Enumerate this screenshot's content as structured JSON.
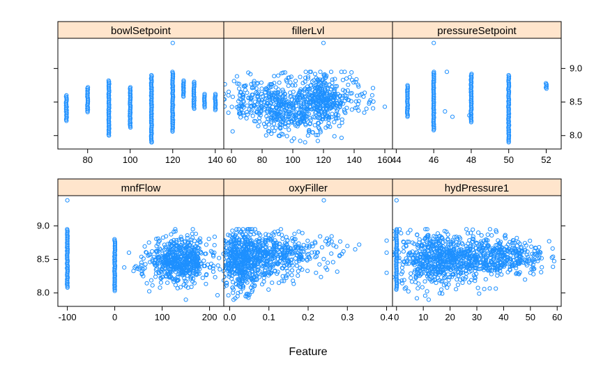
{
  "chart_data": {
    "type": "scatter",
    "layout": "lattice 3x2 panels",
    "xlabel": "Feature",
    "ylabel": "",
    "ylim": [
      7.8,
      9.45
    ],
    "yticks": [
      8.0,
      8.5,
      9.0
    ],
    "point_color": "#1e90ff",
    "strip_color": "#ffe5cc",
    "panels": [
      {
        "name": "bowlSetpoint",
        "row": 0,
        "col": 0,
        "xlim": [
          66,
          144
        ],
        "xticks": [
          80,
          100,
          120,
          140
        ],
        "columns": [
          {
            "x": 70,
            "ymin": 8.22,
            "ymax": 8.6
          },
          {
            "x": 80,
            "ymin": 8.35,
            "ymax": 8.72
          },
          {
            "x": 90,
            "ymin": 8.0,
            "ymax": 8.82
          },
          {
            "x": 100,
            "ymin": 8.12,
            "ymax": 8.72
          },
          {
            "x": 110,
            "ymin": 7.9,
            "ymax": 8.9
          },
          {
            "x": 120,
            "ymin": 8.06,
            "ymax": 8.95
          },
          {
            "x": 125,
            "ymin": 8.58,
            "ymax": 8.82
          },
          {
            "x": 130,
            "ymin": 8.4,
            "ymax": 8.8
          },
          {
            "x": 135,
            "ymin": 8.42,
            "ymax": 8.6
          },
          {
            "x": 140,
            "ymin": 8.38,
            "ymax": 8.62
          }
        ],
        "outliers": [
          [
            120,
            9.38
          ],
          [
            110,
            7.9
          ],
          [
            135,
            8.62
          ]
        ]
      },
      {
        "name": "fillerLvl",
        "row": 0,
        "col": 1,
        "xlim": [
          55,
          165
        ],
        "xticks": [
          60,
          80,
          100,
          120,
          140,
          160
        ],
        "clusters": [
          {
            "cx": 72,
            "cy": 8.5,
            "sx": 8,
            "sy": 0.17,
            "n": 130
          },
          {
            "cx": 90,
            "cy": 8.45,
            "sx": 5,
            "sy": 0.22,
            "n": 190
          },
          {
            "cx": 105,
            "cy": 8.42,
            "sx": 6,
            "sy": 0.22,
            "n": 160
          },
          {
            "cx": 120,
            "cy": 8.52,
            "sx": 6,
            "sy": 0.2,
            "n": 290
          },
          {
            "cx": 135,
            "cy": 8.55,
            "sx": 8,
            "sy": 0.15,
            "n": 60
          }
        ],
        "outliers": [
          [
            120,
            9.38
          ],
          [
            160,
            8.43
          ],
          [
            150,
            8.5
          ],
          [
            145,
            8.62
          ],
          [
            148,
            8.4
          ],
          [
            142,
            8.42
          ],
          [
            108,
            7.9
          ],
          [
            58,
            8.6
          ],
          [
            65,
            8.7
          ],
          [
            110,
            8.88
          ],
          [
            125,
            8.95
          ],
          [
            135,
            8.85
          ]
        ]
      },
      {
        "name": "pressureSetpoint",
        "row": 0,
        "col": 2,
        "xlim": [
          43.8,
          52.8
        ],
        "xticks": [
          44,
          46,
          48,
          50,
          52
        ],
        "columns": [
          {
            "x": 44.6,
            "ymin": 8.28,
            "ymax": 8.75
          },
          {
            "x": 46,
            "ymin": 8.08,
            "ymax": 8.95
          },
          {
            "x": 48,
            "ymin": 8.2,
            "ymax": 8.92
          },
          {
            "x": 50,
            "ymin": 7.9,
            "ymax": 8.9
          },
          {
            "x": 52,
            "ymin": 8.7,
            "ymax": 8.78
          }
        ],
        "outliers": [
          [
            46,
            9.38
          ],
          [
            46.6,
            8.36
          ],
          [
            47,
            8.28
          ],
          [
            46.7,
            8.95
          ],
          [
            47.9,
            8.3
          ]
        ]
      },
      {
        "name": "mnfFlow",
        "row": 1,
        "col": 0,
        "xlim": [
          -120,
          230
        ],
        "xticks": [
          -100,
          0,
          100,
          200
        ],
        "columns": [
          {
            "x": -100,
            "ymin": 8.08,
            "ymax": 8.95
          },
          {
            "x": 0,
            "ymin": 8.05,
            "ymax": 8.8
          }
        ],
        "clusters": [
          {
            "cx": 140,
            "cy": 8.48,
            "sx": 30,
            "sy": 0.17,
            "n": 520
          },
          {
            "cx": 90,
            "cy": 8.45,
            "sx": 25,
            "sy": 0.12,
            "n": 60
          }
        ],
        "outliers": [
          [
            -100,
            9.38
          ],
          [
            0,
            8.03
          ],
          [
            20,
            8.38
          ],
          [
            30,
            8.6
          ],
          [
            150,
            7.9
          ],
          [
            60,
            8.25
          ],
          [
            210,
            8.6
          ],
          [
            220,
            8.52
          ]
        ]
      },
      {
        "name": "oxyFiller",
        "row": 1,
        "col": 1,
        "xlim": [
          -0.015,
          0.415
        ],
        "xticks": [
          0.0,
          0.1,
          0.2,
          0.3,
          0.4
        ],
        "clusters": [
          {
            "cx": 0.03,
            "cy": 8.48,
            "sx": 0.025,
            "sy": 0.22,
            "n": 420
          },
          {
            "cx": 0.09,
            "cy": 8.55,
            "sx": 0.045,
            "sy": 0.17,
            "n": 320
          },
          {
            "cx": 0.18,
            "cy": 8.6,
            "sx": 0.05,
            "sy": 0.14,
            "n": 110
          }
        ],
        "outliers": [
          [
            0.24,
            9.38
          ],
          [
            0.4,
            8.78
          ],
          [
            0.4,
            8.6
          ],
          [
            0.4,
            8.3
          ],
          [
            0.3,
            8.7
          ],
          [
            0.32,
            8.65
          ],
          [
            0.28,
            8.55
          ],
          [
            0.25,
            8.45
          ],
          [
            0.22,
            8.3
          ],
          [
            0.01,
            7.9
          ],
          [
            0.02,
            7.95
          ],
          [
            0.33,
            8.72
          ],
          [
            0.29,
            8.62
          ]
        ]
      },
      {
        "name": "hydPressure1",
        "row": 1,
        "col": 2,
        "xlim": [
          -1.5,
          61.5
        ],
        "xticks": [
          0,
          10,
          20,
          30,
          40,
          50,
          60
        ],
        "columns": [
          {
            "x": 0,
            "ymin": 8.05,
            "ymax": 8.95
          }
        ],
        "clusters": [
          {
            "cx": 15,
            "cy": 8.5,
            "sx": 7,
            "sy": 0.2,
            "n": 520
          },
          {
            "cx": 32,
            "cy": 8.55,
            "sx": 8,
            "sy": 0.16,
            "n": 380
          },
          {
            "cx": 46,
            "cy": 8.55,
            "sx": 5,
            "sy": 0.13,
            "n": 110
          }
        ],
        "outliers": [
          [
            0,
            9.38
          ],
          [
            57,
            8.77
          ],
          [
            53,
            8.6
          ],
          [
            12,
            7.9
          ],
          [
            50,
            8.3
          ],
          [
            48,
            8.2
          ]
        ]
      }
    ]
  }
}
